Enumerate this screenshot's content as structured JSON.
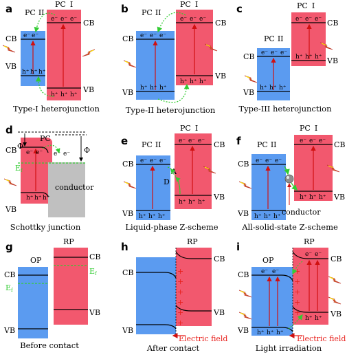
{
  "panel_letters": [
    "a",
    "b",
    "c",
    "d",
    "e",
    "f",
    "g",
    "h",
    "i"
  ],
  "labels": {
    "pc1": "PC",
    "pc1_num": "I",
    "pc2": "PC",
    "pc2_num": "II",
    "pc_single": "PC",
    "cb": "CB",
    "vb": "VB",
    "rp": "RP",
    "op": "OP",
    "ef": "E",
    "ef_sub": "f",
    "phi": "Φ",
    "electron": "e⁻",
    "hole": "h⁺",
    "conductor": "conductor",
    "acceptor": "A",
    "donor": "D",
    "plus": "+",
    "electric_field": "Electric field"
  },
  "captions": {
    "a": "Type-I heterojunction",
    "b": "Type-II heterojunction",
    "c": "Type-III heterojunction",
    "d": "Schottky junction",
    "e": "Liquid-phase Z-scheme",
    "f": "All-solid-state Z-scheme",
    "g": "Before contact",
    "h": "After contact",
    "i": "Light irradiation"
  },
  "colors": {
    "blue_semiconductor": "#5b9bf0",
    "red_semiconductor": "#f2586e",
    "conductor_gray": "#c0c0c0",
    "transfer_arrow": "#33cc33",
    "excitation_arrow": "#d01010",
    "fermi_level": "#33cc33",
    "electric_field": "#e8201c"
  },
  "icons": [
    "lightning-icon",
    "electron-transfer-arrow",
    "hole-transfer-arrow",
    "electric-field-arrow",
    "conductor-sphere"
  ]
}
